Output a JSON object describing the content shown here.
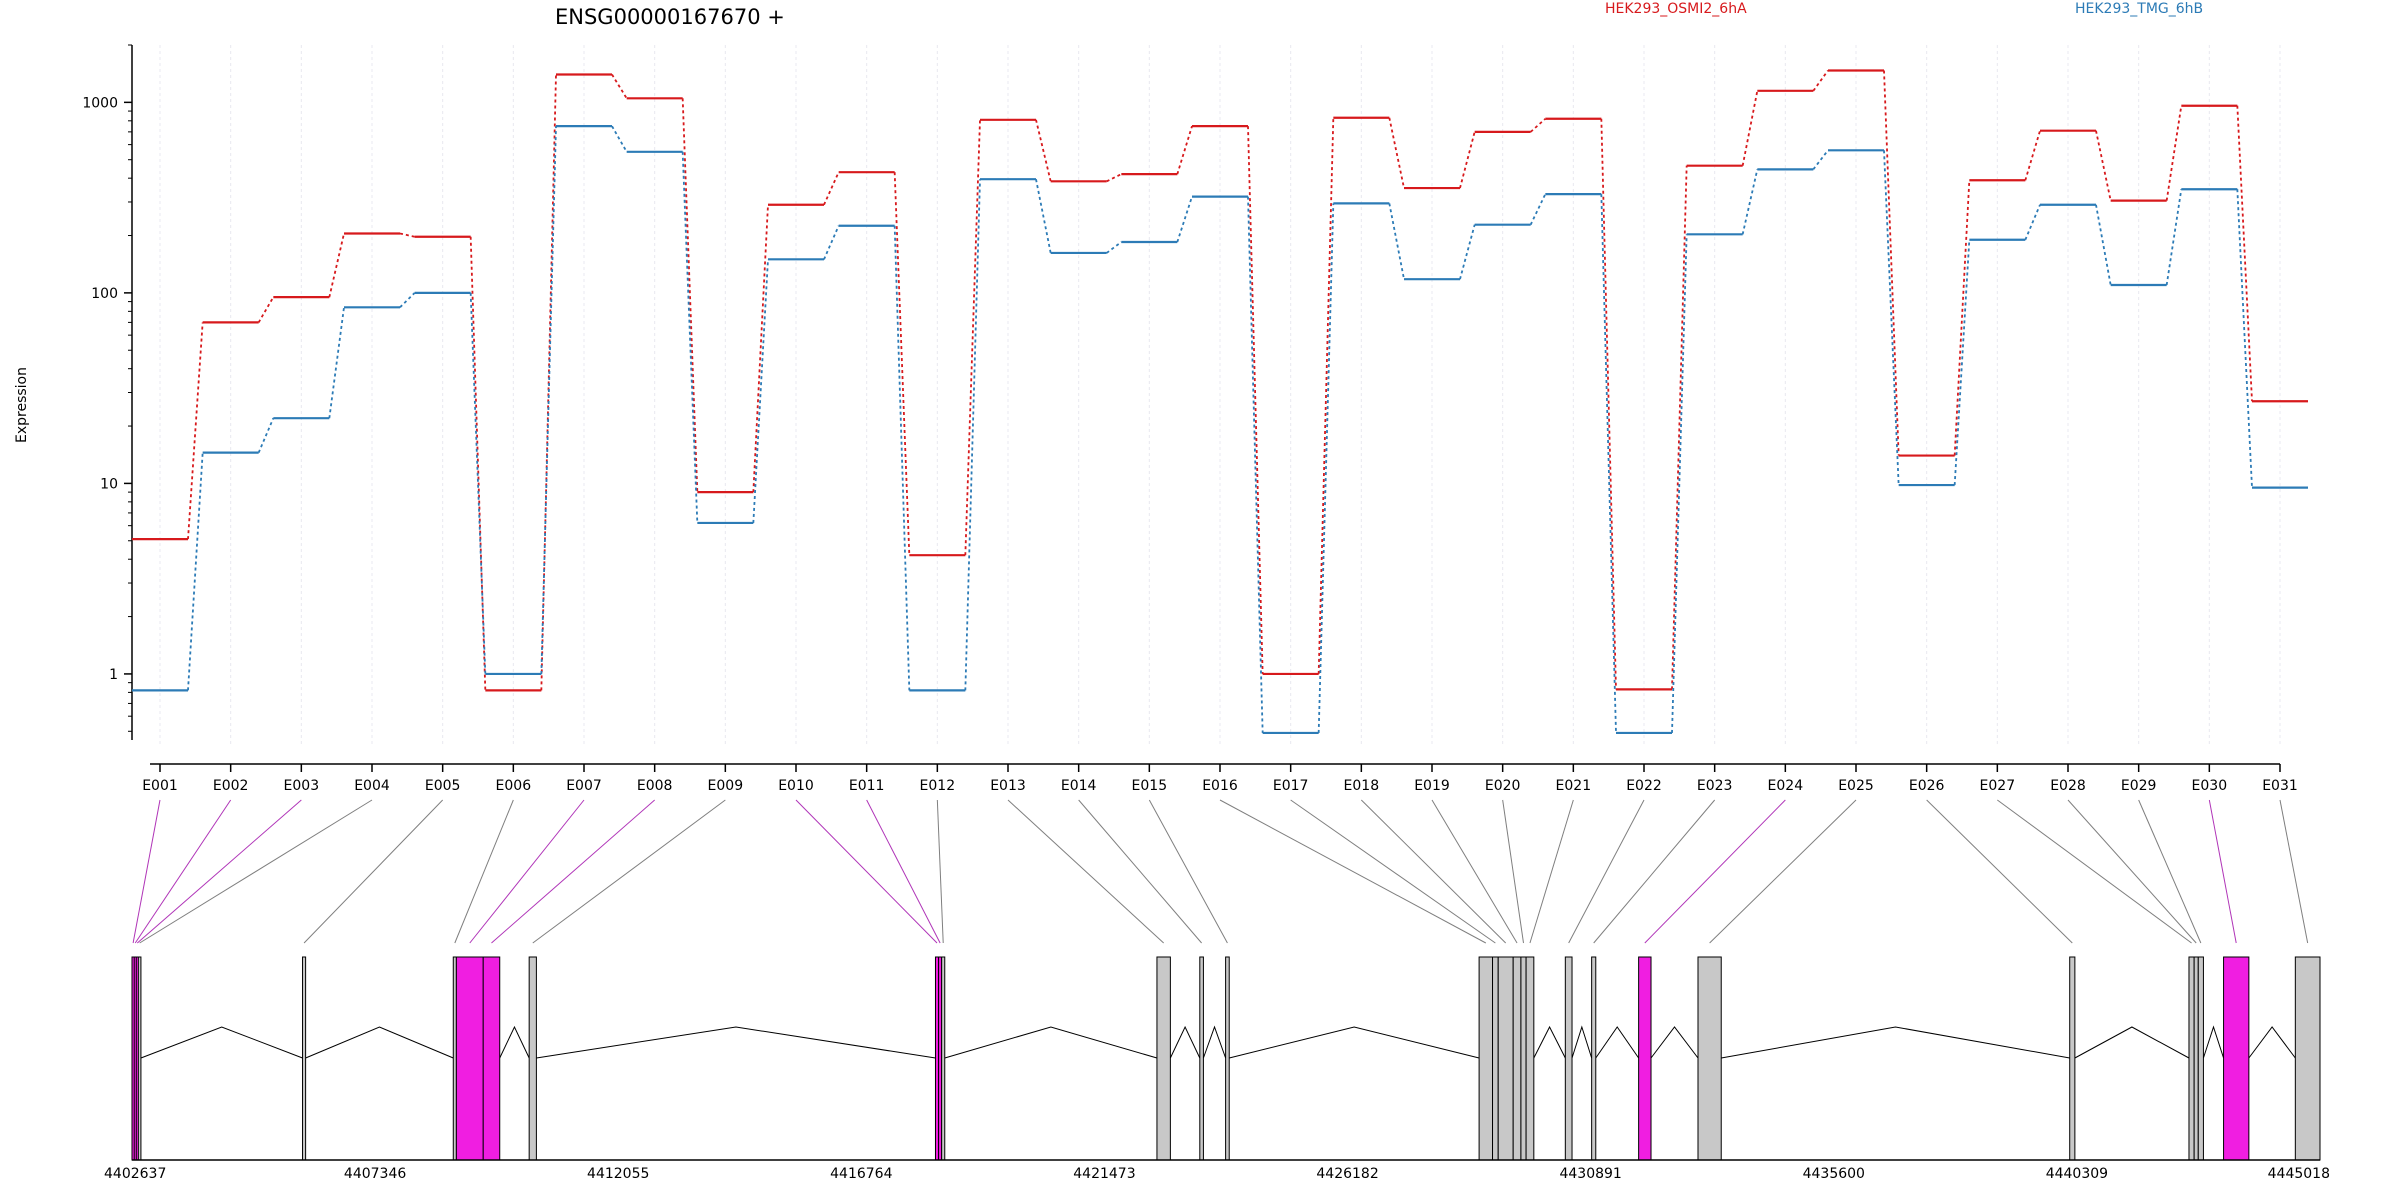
{
  "chart_data": {
    "type": "line",
    "title": "ENSG00000167670 +",
    "ylabel": "Expression",
    "yscale": "log",
    "ylim": [
      0.45,
      2000
    ],
    "yticks": [
      "1",
      "10",
      "100",
      "1000"
    ],
    "grid": "vertical dotted per exon",
    "legend": "top",
    "categories": [
      "E001",
      "E002",
      "E003",
      "E004",
      "E005",
      "E006",
      "E007",
      "E008",
      "E009",
      "E010",
      "E011",
      "E012",
      "E013",
      "E014",
      "E015",
      "E016",
      "E017",
      "E018",
      "E019",
      "E020",
      "E021",
      "E022",
      "E023",
      "E024",
      "E025",
      "E026",
      "E027",
      "E028",
      "E029",
      "E030",
      "E031"
    ],
    "series": [
      {
        "name": "HEK293_OSMI2_6hA",
        "color": "#d7191c",
        "values": [
          5.1,
          70,
          95,
          205,
          197,
          0.82,
          1400,
          1050,
          9,
          290,
          430,
          4.2,
          810,
          385,
          420,
          750,
          1.0,
          830,
          355,
          700,
          820,
          0.83,
          465,
          1150,
          1470,
          14,
          390,
          710,
          305,
          960,
          27
        ]
      },
      {
        "name": "HEK293_TMG_6hB",
        "color": "#2c7bb6",
        "values": [
          0.82,
          14.5,
          22,
          84,
          100,
          1.0,
          750,
          550,
          6.2,
          150,
          225,
          0.82,
          395,
          162,
          185,
          320,
          0.49,
          295,
          118,
          228,
          330,
          0.49,
          203,
          445,
          560,
          9.8,
          190,
          290,
          110,
          350,
          9.5
        ]
      }
    ],
    "gene_model": {
      "coordinate_ticks": [
        "4402637",
        "4407346",
        "4412055",
        "4416764",
        "4421473",
        "4426182",
        "4430891",
        "4435600",
        "4440309",
        "4445018"
      ],
      "axis_range": [
        4402637,
        4445018
      ],
      "exons": [
        {
          "id": "E001",
          "start": 4402637,
          "end": 4402680,
          "significant": true
        },
        {
          "id": "E002",
          "start": 4402680,
          "end": 4402720,
          "significant": true
        },
        {
          "id": "E003",
          "start": 4402720,
          "end": 4402760,
          "significant": true
        },
        {
          "id": "E004",
          "start": 4402760,
          "end": 4402810,
          "significant": false
        },
        {
          "id": "E005",
          "start": 4405940,
          "end": 4406000,
          "significant": false
        },
        {
          "id": "E006",
          "start": 4408860,
          "end": 4408920,
          "significant": false
        },
        {
          "id": "E007",
          "start": 4408920,
          "end": 4409440,
          "significant": true
        },
        {
          "id": "E008",
          "start": 4409440,
          "end": 4409760,
          "significant": true
        },
        {
          "id": "E009",
          "start": 4410330,
          "end": 4410470,
          "significant": false
        },
        {
          "id": "E010",
          "start": 4418200,
          "end": 4418260,
          "significant": true
        },
        {
          "id": "E011",
          "start": 4418260,
          "end": 4418320,
          "significant": true
        },
        {
          "id": "E012",
          "start": 4418320,
          "end": 4418380,
          "significant": false
        },
        {
          "id": "E013",
          "start": 4422490,
          "end": 4422750,
          "significant": false
        },
        {
          "id": "E014",
          "start": 4423320,
          "end": 4423390,
          "significant": false
        },
        {
          "id": "E015",
          "start": 4423820,
          "end": 4423890,
          "significant": false
        },
        {
          "id": "E016",
          "start": 4428730,
          "end": 4428990,
          "significant": false
        },
        {
          "id": "E017",
          "start": 4428990,
          "end": 4429100,
          "significant": false
        },
        {
          "id": "E018",
          "start": 4429100,
          "end": 4429390,
          "significant": false
        },
        {
          "id": "E019",
          "start": 4429390,
          "end": 4429540,
          "significant": false
        },
        {
          "id": "E020",
          "start": 4429540,
          "end": 4429640,
          "significant": false
        },
        {
          "id": "E021",
          "start": 4429640,
          "end": 4429790,
          "significant": false
        },
        {
          "id": "E022",
          "start": 4430400,
          "end": 4430530,
          "significant": false
        },
        {
          "id": "E023",
          "start": 4430910,
          "end": 4430990,
          "significant": false
        },
        {
          "id": "E024",
          "start": 4431820,
          "end": 4432060,
          "significant": true
        },
        {
          "id": "E025",
          "start": 4432970,
          "end": 4433420,
          "significant": false
        },
        {
          "id": "E026",
          "start": 4440170,
          "end": 4440270,
          "significant": false
        },
        {
          "id": "E027",
          "start": 4442480,
          "end": 4442580,
          "significant": false
        },
        {
          "id": "E028",
          "start": 4442580,
          "end": 4442660,
          "significant": false
        },
        {
          "id": "E029",
          "start": 4442660,
          "end": 4442760,
          "significant": false
        },
        {
          "id": "E030",
          "start": 4443150,
          "end": 4443640,
          "significant": true
        },
        {
          "id": "E031",
          "start": 4444540,
          "end": 4445018,
          "significant": false
        }
      ]
    }
  },
  "colors": {
    "significant": "#f01ee1",
    "normal": "#c8c8c8",
    "connector_normal": "#7f7f7f",
    "connector_significant": "#b035b8",
    "axis": "#000000",
    "grid": "#e8e8f0"
  }
}
